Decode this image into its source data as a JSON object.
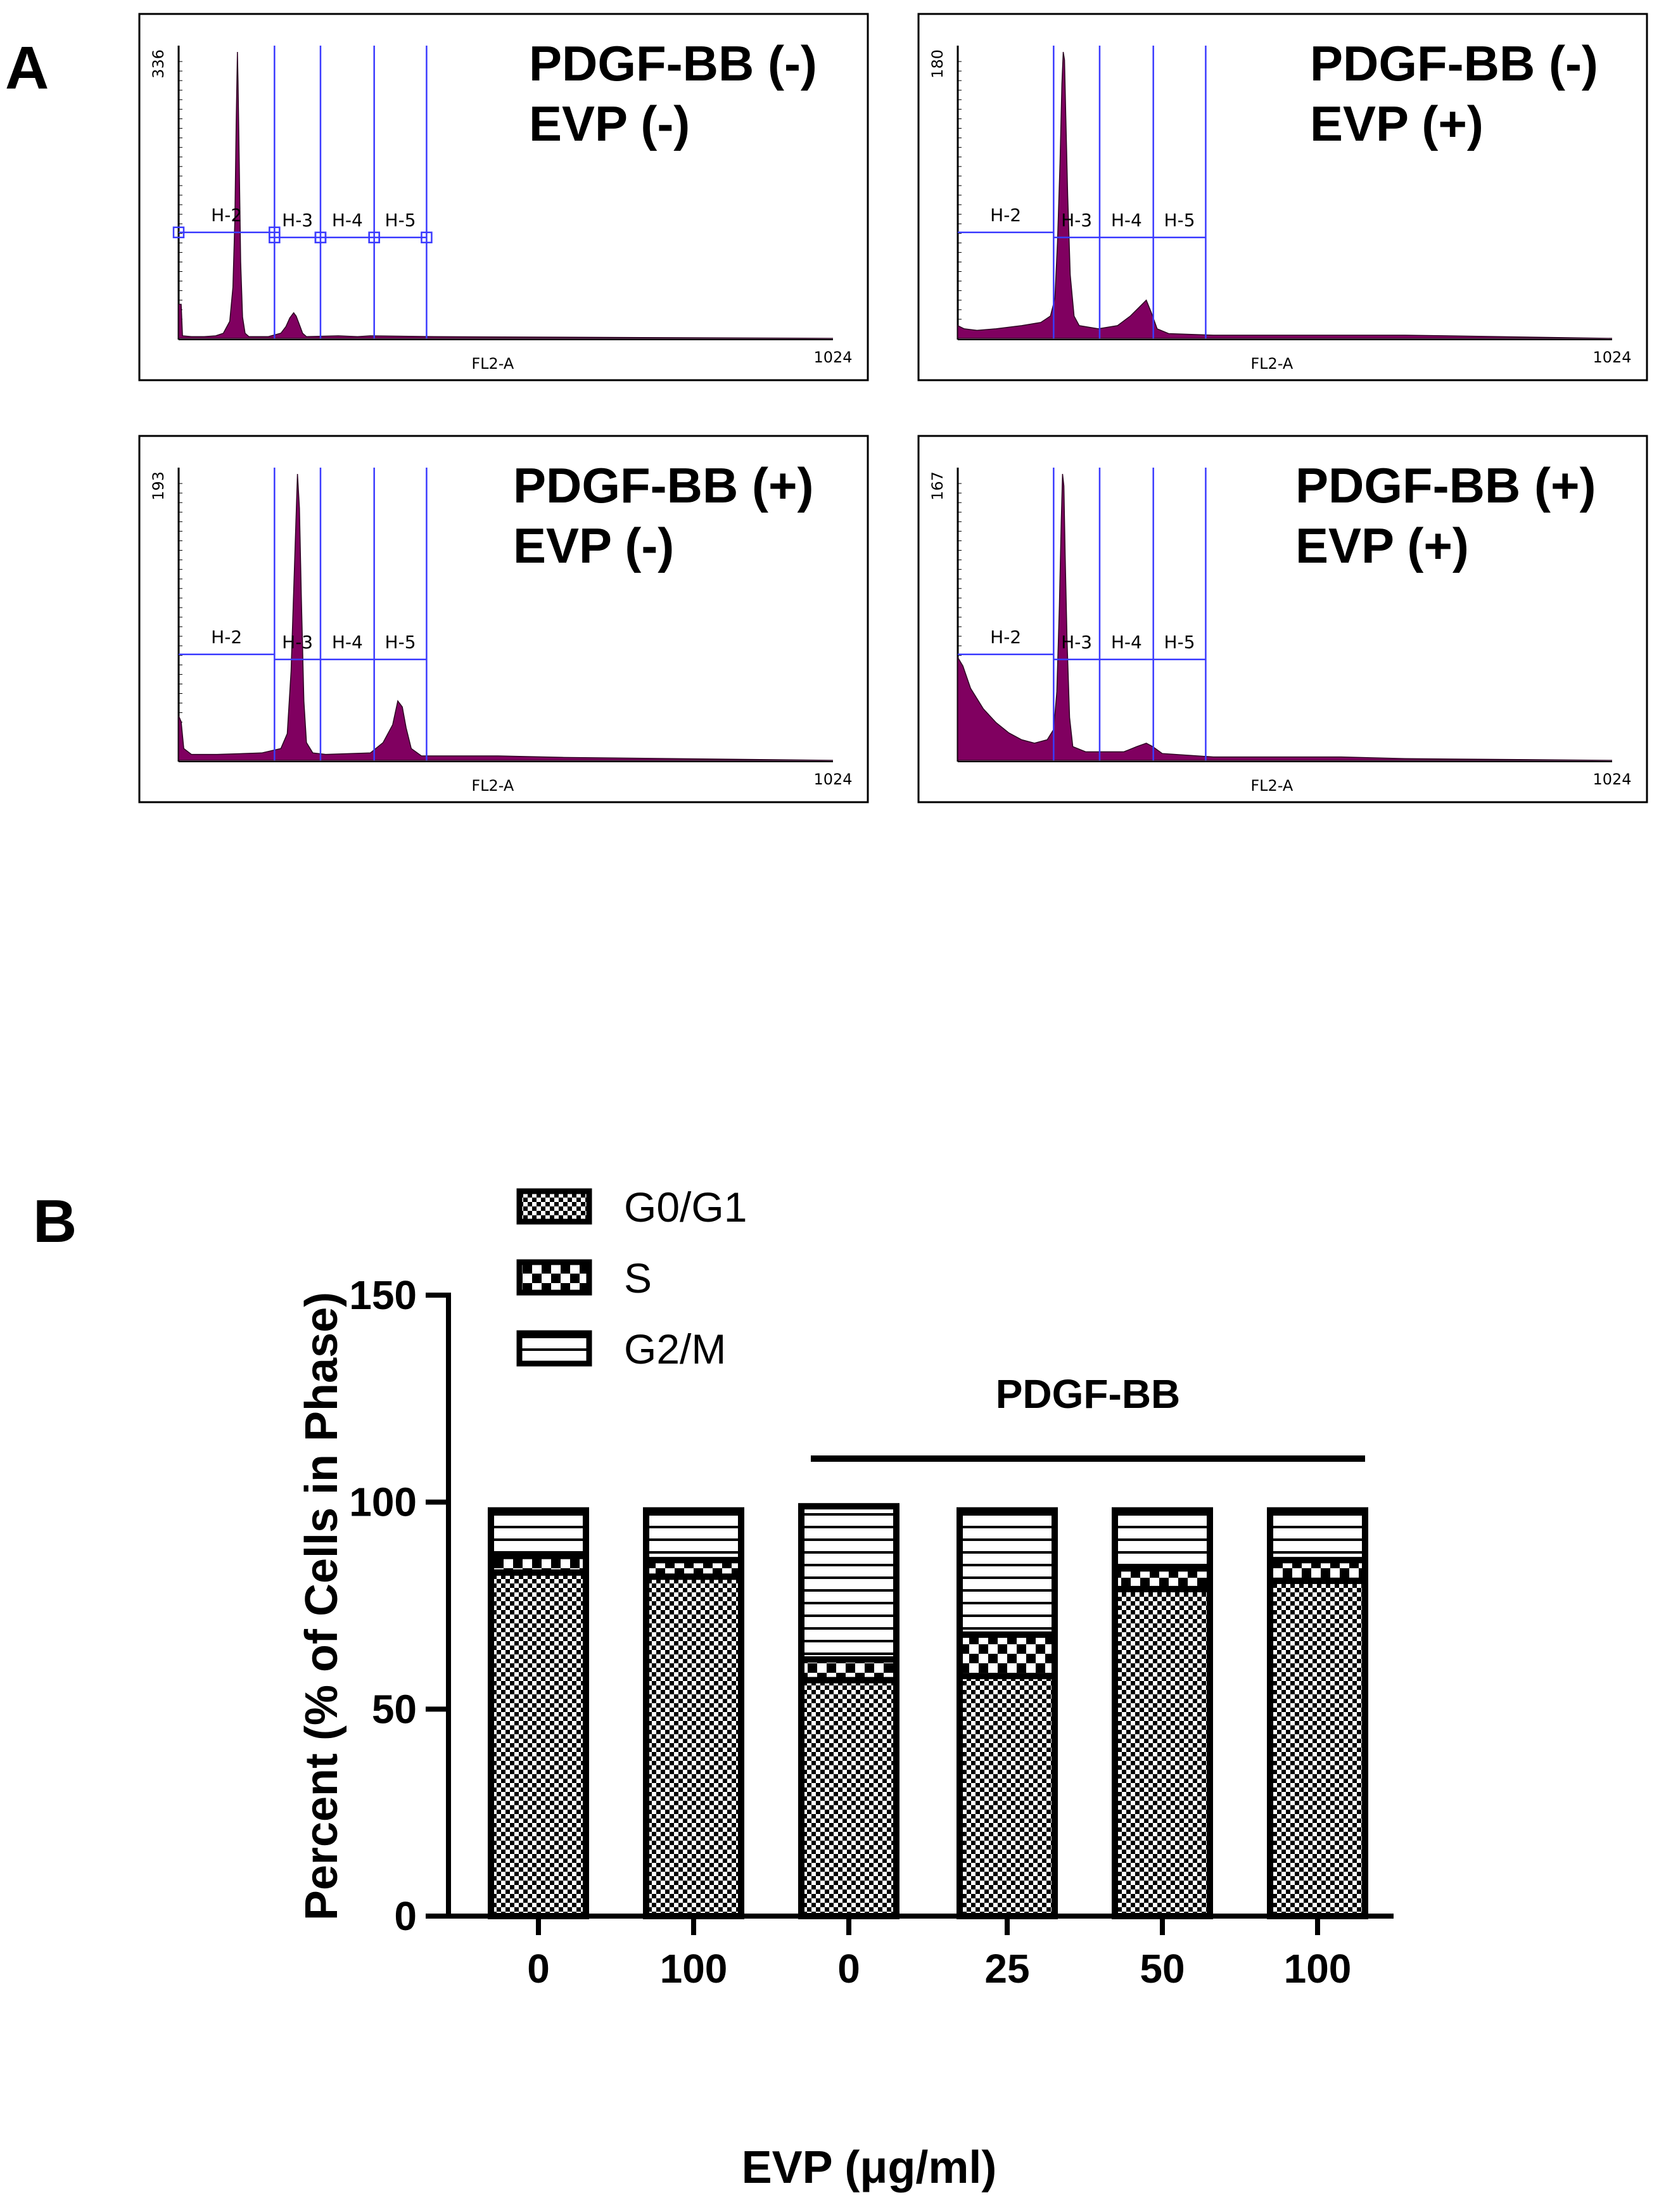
{
  "panel_a": {
    "label": "A",
    "x_axis_label": "FL2-A",
    "x_axis_max_label": "1024",
    "gate_labels": [
      "H-2",
      "H-3",
      "H-4",
      "H-5"
    ],
    "histograms": [
      {
        "title_line1": "PDGF-BB (-)",
        "title_line2": "EVP (-)",
        "y_max_label": "336",
        "y_max": 336,
        "profile": [
          [
            0,
            40
          ],
          [
            4,
            40
          ],
          [
            6,
            3
          ],
          [
            20,
            2
          ],
          [
            40,
            2
          ],
          [
            58,
            3
          ],
          [
            70,
            6
          ],
          [
            80,
            20
          ],
          [
            85,
            60
          ],
          [
            88,
            140
          ],
          [
            90,
            250
          ],
          [
            92,
            336
          ],
          [
            93,
            300
          ],
          [
            95,
            200
          ],
          [
            97,
            90
          ],
          [
            100,
            25
          ],
          [
            104,
            6
          ],
          [
            110,
            2
          ],
          [
            140,
            2
          ],
          [
            160,
            6
          ],
          [
            168,
            14
          ],
          [
            174,
            24
          ],
          [
            180,
            30
          ],
          [
            184,
            26
          ],
          [
            188,
            18
          ],
          [
            194,
            6
          ],
          [
            200,
            2
          ],
          [
            250,
            3
          ],
          [
            280,
            2
          ],
          [
            300,
            3
          ],
          [
            400,
            2
          ],
          [
            1024,
            0
          ]
        ]
      },
      {
        "title_line1": "PDGF-BB (-)",
        "title_line2": "EVP (+)",
        "y_max_label": "180",
        "y_max": 180,
        "profile": [
          [
            0,
            8
          ],
          [
            10,
            6
          ],
          [
            30,
            5
          ],
          [
            60,
            6
          ],
          [
            100,
            8
          ],
          [
            130,
            10
          ],
          [
            145,
            14
          ],
          [
            152,
            25
          ],
          [
            156,
            60
          ],
          [
            160,
            110
          ],
          [
            163,
            160
          ],
          [
            165,
            180
          ],
          [
            167,
            175
          ],
          [
            169,
            140
          ],
          [
            172,
            90
          ],
          [
            176,
            40
          ],
          [
            182,
            14
          ],
          [
            190,
            8
          ],
          [
            220,
            6
          ],
          [
            250,
            8
          ],
          [
            270,
            14
          ],
          [
            285,
            20
          ],
          [
            295,
            24
          ],
          [
            303,
            16
          ],
          [
            312,
            6
          ],
          [
            330,
            3
          ],
          [
            400,
            2
          ],
          [
            600,
            2
          ],
          [
            700,
            2
          ],
          [
            1024,
            0
          ]
        ]
      },
      {
        "title_line1": "PDGF-BB (+)",
        "title_line2": "EVP (-)",
        "y_max_label": "193",
        "y_max": 193,
        "profile": [
          [
            0,
            30
          ],
          [
            4,
            26
          ],
          [
            8,
            8
          ],
          [
            20,
            4
          ],
          [
            60,
            4
          ],
          [
            130,
            5
          ],
          [
            160,
            8
          ],
          [
            170,
            18
          ],
          [
            176,
            60
          ],
          [
            182,
            140
          ],
          [
            186,
            193
          ],
          [
            189,
            170
          ],
          [
            192,
            110
          ],
          [
            196,
            40
          ],
          [
            200,
            12
          ],
          [
            210,
            5
          ],
          [
            230,
            4
          ],
          [
            300,
            5
          ],
          [
            320,
            12
          ],
          [
            335,
            24
          ],
          [
            343,
            40
          ],
          [
            350,
            36
          ],
          [
            356,
            22
          ],
          [
            364,
            8
          ],
          [
            380,
            3
          ],
          [
            500,
            3
          ],
          [
            600,
            2
          ],
          [
            1024,
            0
          ]
        ]
      },
      {
        "title_line1": "PDGF-BB (+)",
        "title_line2": "EVP (+)",
        "y_max_label": "167",
        "y_max": 167,
        "profile": [
          [
            0,
            60
          ],
          [
            8,
            55
          ],
          [
            20,
            42
          ],
          [
            40,
            30
          ],
          [
            60,
            22
          ],
          [
            80,
            16
          ],
          [
            100,
            12
          ],
          [
            120,
            10
          ],
          [
            140,
            12
          ],
          [
            150,
            18
          ],
          [
            155,
            40
          ],
          [
            159,
            90
          ],
          [
            162,
            140
          ],
          [
            164,
            167
          ],
          [
            166,
            160
          ],
          [
            168,
            120
          ],
          [
            171,
            70
          ],
          [
            175,
            25
          ],
          [
            180,
            8
          ],
          [
            200,
            5
          ],
          [
            260,
            5
          ],
          [
            280,
            8
          ],
          [
            295,
            10
          ],
          [
            305,
            8
          ],
          [
            320,
            4
          ],
          [
            400,
            2
          ],
          [
            600,
            2
          ],
          [
            700,
            1
          ],
          [
            1024,
            0
          ]
        ]
      }
    ]
  },
  "panel_b": {
    "label": "B",
    "annotation": "PDGF-BB"
  },
  "chart_data": {
    "type": "stacked_bar",
    "title": "",
    "xlabel": "EVP (μg/ml)",
    "ylabel": "Percent (% of Cells in Phase)",
    "ylim": [
      0,
      150
    ],
    "yticks": [
      0,
      50,
      100,
      150
    ],
    "categories": [
      "0",
      "100",
      "0",
      "25",
      "50",
      "100"
    ],
    "series": [
      {
        "name": "G0/G1",
        "values": [
          83,
          82,
          57,
          58,
          79,
          81
        ]
      },
      {
        "name": "S",
        "values": [
          4,
          4,
          5,
          10,
          5,
          5
        ]
      },
      {
        "name": "G2/M",
        "values": [
          11,
          12,
          37,
          30,
          14,
          12
        ]
      }
    ],
    "group_annotation": {
      "label": "PDGF-BB",
      "spans_categories": [
        2,
        5
      ]
    },
    "legend_position": "top-left"
  }
}
